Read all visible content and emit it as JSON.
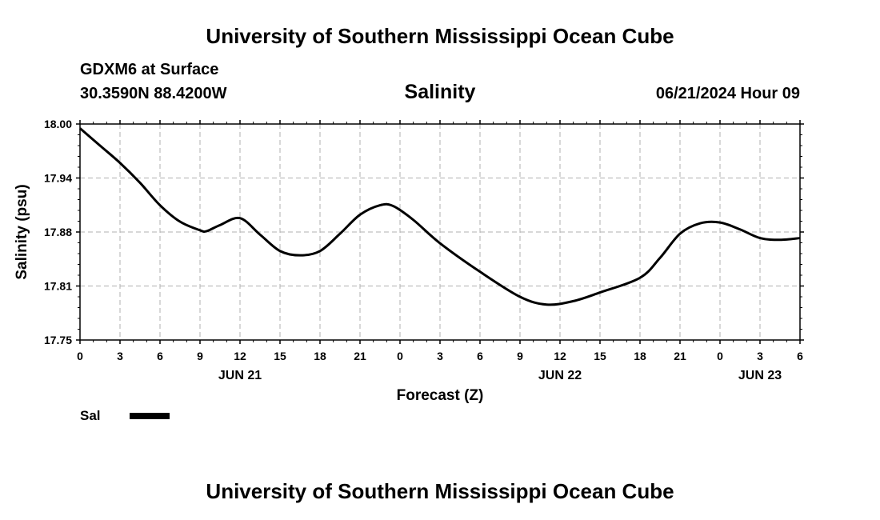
{
  "header": {
    "title": "University of Southern Mississippi Ocean Cube",
    "station_name": "GDXM6 at Surface",
    "station_coords": "30.3590N  88.4200W",
    "run_time": "06/21/2024 Hour 09"
  },
  "footer": {
    "title": "University of Southern Mississippi Ocean Cube"
  },
  "legend": {
    "label": "Sal",
    "color": "#000000"
  },
  "chart_data": {
    "type": "line",
    "title": "Salinity",
    "xlabel": "Forecast (Z)",
    "ylabel": "Salinity (psu)",
    "xlim": [
      0,
      54
    ],
    "ylim": [
      17.75,
      18.0
    ],
    "yticks": [
      "17.75",
      "17.81",
      "17.88",
      "17.94",
      "18.00"
    ],
    "xtick_labels": [
      "0",
      "3",
      "6",
      "9",
      "12",
      "15",
      "18",
      "21",
      "0",
      "3",
      "6",
      "9",
      "12",
      "15",
      "18",
      "21",
      "0",
      "3",
      "6"
    ],
    "date_labels": [
      {
        "label": "JUN 21",
        "hour": 12
      },
      {
        "label": "JUN 22",
        "hour": 36
      },
      {
        "label": "JUN 23",
        "hour": 51
      }
    ],
    "grid": true,
    "series": [
      {
        "name": "Sal",
        "color": "#000000",
        "x": [
          0,
          1.5,
          3,
          4.5,
          6,
          7.5,
          9,
          9.5,
          10.5,
          12,
          13.5,
          15,
          16.5,
          18,
          19.5,
          21,
          22.5,
          23.5,
          25,
          27,
          30,
          33,
          35,
          37,
          39,
          42,
          43.5,
          45,
          46.5,
          48,
          49.5,
          51,
          52.5,
          54
        ],
        "y": [
          17.995,
          17.975,
          17.955,
          17.932,
          17.906,
          17.887,
          17.877,
          17.876,
          17.883,
          17.891,
          17.872,
          17.853,
          17.848,
          17.853,
          17.873,
          17.895,
          17.906,
          17.905,
          17.889,
          17.862,
          17.829,
          17.8,
          17.791,
          17.795,
          17.805,
          17.822,
          17.845,
          17.873,
          17.885,
          17.886,
          17.878,
          17.868,
          17.866,
          17.868
        ]
      }
    ]
  }
}
